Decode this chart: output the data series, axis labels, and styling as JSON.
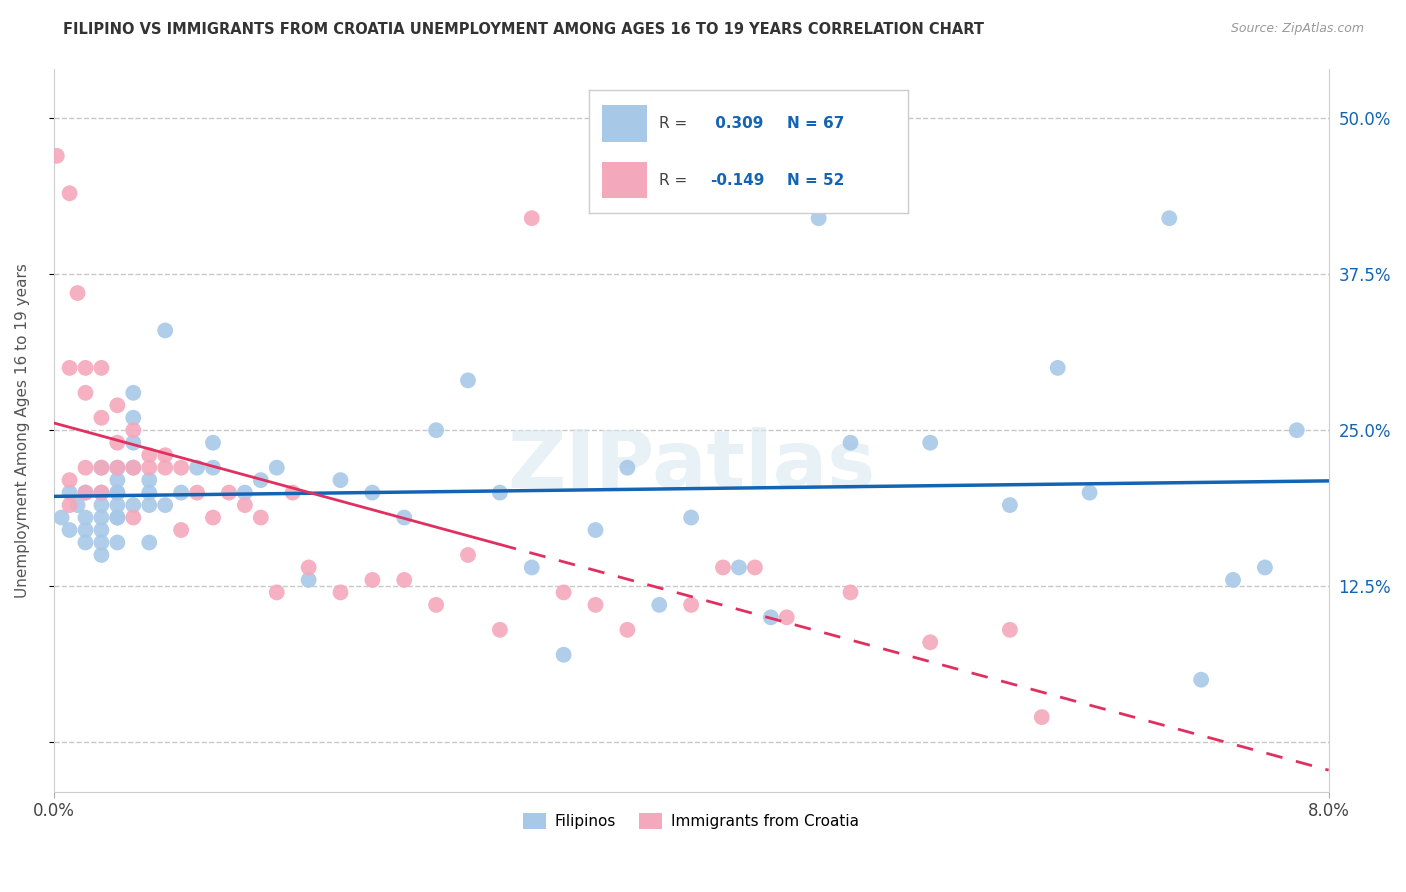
{
  "title": "FILIPINO VS IMMIGRANTS FROM CROATIA UNEMPLOYMENT AMONG AGES 16 TO 19 YEARS CORRELATION CHART",
  "source": "Source: ZipAtlas.com",
  "ylabel": "Unemployment Among Ages 16 to 19 years",
  "yticks": [
    0.0,
    0.125,
    0.25,
    0.375,
    0.5
  ],
  "ytick_labels": [
    "",
    "12.5%",
    "25.0%",
    "37.5%",
    "50.0%"
  ],
  "xmin": 0.0,
  "xmax": 0.08,
  "ymin": -0.04,
  "ymax": 0.54,
  "filipino_R": 0.309,
  "filipino_N": 67,
  "croatia_R": -0.149,
  "croatia_N": 52,
  "watermark": "ZIPatlas",
  "filipino_color": "#a8c8e8",
  "croatia_color": "#f4a8bc",
  "filipino_line_color": "#1464b4",
  "croatia_line_color": "#e03060",
  "background_color": "#ffffff",
  "grid_color": "#c8c8c8",
  "legend_label1": "Filipinos",
  "legend_label2": "Immigrants from Croatia",
  "filipino_x": [
    0.0005,
    0.001,
    0.001,
    0.0015,
    0.002,
    0.002,
    0.002,
    0.002,
    0.003,
    0.003,
    0.003,
    0.003,
    0.003,
    0.003,
    0.003,
    0.004,
    0.004,
    0.004,
    0.004,
    0.004,
    0.004,
    0.004,
    0.004,
    0.005,
    0.005,
    0.005,
    0.005,
    0.005,
    0.006,
    0.006,
    0.006,
    0.006,
    0.007,
    0.007,
    0.008,
    0.009,
    0.01,
    0.01,
    0.012,
    0.013,
    0.014,
    0.016,
    0.018,
    0.02,
    0.022,
    0.024,
    0.026,
    0.028,
    0.03,
    0.032,
    0.034,
    0.036,
    0.038,
    0.04,
    0.043,
    0.045,
    0.048,
    0.05,
    0.055,
    0.06,
    0.063,
    0.065,
    0.07,
    0.072,
    0.074,
    0.076,
    0.078
  ],
  "filipino_y": [
    0.18,
    0.2,
    0.17,
    0.19,
    0.17,
    0.2,
    0.18,
    0.16,
    0.22,
    0.19,
    0.18,
    0.17,
    0.15,
    0.2,
    0.16,
    0.21,
    0.2,
    0.19,
    0.18,
    0.16,
    0.22,
    0.2,
    0.18,
    0.28,
    0.19,
    0.24,
    0.22,
    0.26,
    0.21,
    0.2,
    0.19,
    0.16,
    0.33,
    0.19,
    0.2,
    0.22,
    0.24,
    0.22,
    0.2,
    0.21,
    0.22,
    0.13,
    0.21,
    0.2,
    0.18,
    0.25,
    0.29,
    0.2,
    0.14,
    0.07,
    0.17,
    0.22,
    0.11,
    0.18,
    0.14,
    0.1,
    0.42,
    0.24,
    0.24,
    0.19,
    0.3,
    0.2,
    0.42,
    0.05,
    0.13,
    0.14,
    0.25
  ],
  "croatia_x": [
    0.0002,
    0.001,
    0.001,
    0.001,
    0.001,
    0.0015,
    0.002,
    0.002,
    0.002,
    0.002,
    0.003,
    0.003,
    0.003,
    0.003,
    0.004,
    0.004,
    0.004,
    0.005,
    0.005,
    0.005,
    0.006,
    0.006,
    0.007,
    0.007,
    0.008,
    0.008,
    0.009,
    0.01,
    0.011,
    0.012,
    0.013,
    0.014,
    0.015,
    0.016,
    0.018,
    0.02,
    0.022,
    0.024,
    0.026,
    0.028,
    0.03,
    0.032,
    0.034,
    0.036,
    0.04,
    0.042,
    0.044,
    0.046,
    0.05,
    0.055,
    0.06,
    0.062
  ],
  "croatia_y": [
    0.47,
    0.44,
    0.21,
    0.3,
    0.19,
    0.36,
    0.3,
    0.28,
    0.22,
    0.2,
    0.3,
    0.26,
    0.22,
    0.2,
    0.27,
    0.24,
    0.22,
    0.25,
    0.22,
    0.18,
    0.23,
    0.22,
    0.23,
    0.22,
    0.22,
    0.17,
    0.2,
    0.18,
    0.2,
    0.19,
    0.18,
    0.12,
    0.2,
    0.14,
    0.12,
    0.13,
    0.13,
    0.11,
    0.15,
    0.09,
    0.42,
    0.12,
    0.11,
    0.09,
    0.11,
    0.14,
    0.14,
    0.1,
    0.12,
    0.08,
    0.09,
    0.02
  ]
}
